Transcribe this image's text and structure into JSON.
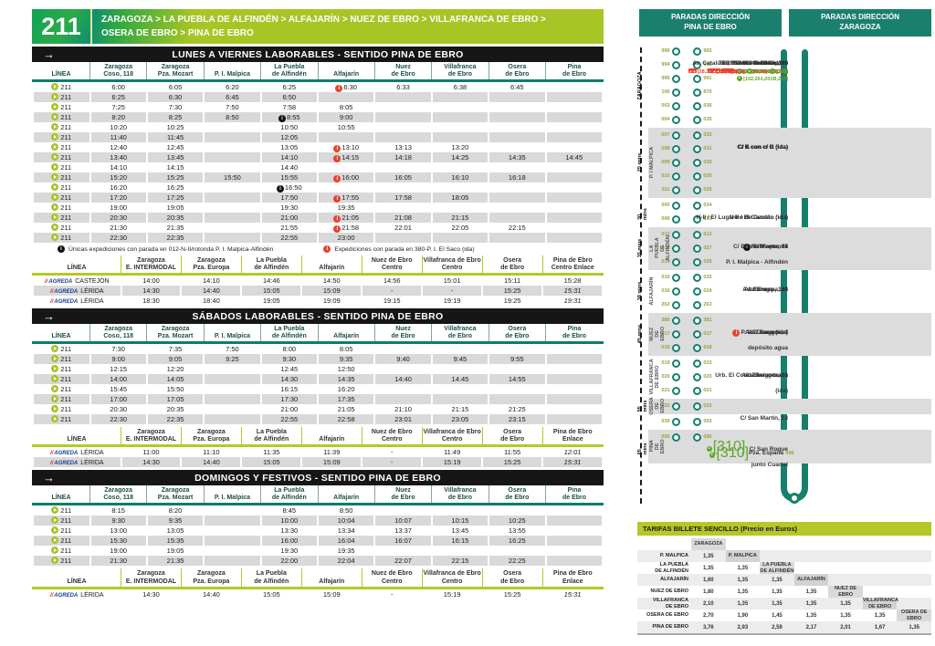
{
  "line": {
    "number": "211",
    "route_line1": "ZARAGOZA > LA PUEBLA DE ALFINDÉN > ALFAJARÍN > NUEZ DE EBRO > VILLAFRANCA DE EBRO >",
    "route_line2": "OSERA DE EBRO > PINA DE EBRO"
  },
  "colors": {
    "accent_green": "#a7c525",
    "teal": "#17806d",
    "black_bar": "#161616",
    "alert_red": "#e8432e",
    "link_green": "#5da728",
    "gray_band": "#d9d9d9",
    "fares_header": "#b5c827"
  },
  "timetables": [
    {
      "title": "LUNES A VIERNES LABORABLES - SENTIDO PINA DE EBRO",
      "headers": [
        "LÍNEA",
        "Zaragoza\nCoso, 118",
        "Zaragoza\nPza. Mozart",
        "P. I. Malpica",
        "La Puebla\nde Alfindén",
        "Alfajarín",
        "Nuez\nde Ebro",
        "Villafranca\nde Ebro",
        "Osera\nde Ebro",
        "Pina\nde Ebro"
      ],
      "rows": [
        [
          "6:00",
          "6:05",
          "6:20",
          "6:25",
          "r|6:30",
          "6:33",
          "6:38",
          "6:45",
          ""
        ],
        [
          "6:25",
          "6:30",
          "6:45",
          "6:50",
          "",
          "",
          "",
          "",
          ""
        ],
        [
          "7:25",
          "7:30",
          "7:50",
          "7:58",
          "8:05",
          "",
          "",
          "",
          ""
        ],
        [
          "8:20",
          "8:25",
          "8:50",
          "b|8:55",
          "9:00",
          "",
          "",
          "",
          ""
        ],
        [
          "10:20",
          "10:25",
          "",
          "10:50",
          "10:55",
          "",
          "",
          "",
          ""
        ],
        [
          "11:40",
          "11:45",
          "",
          "12:05",
          "",
          "",
          "",
          "",
          ""
        ],
        [
          "12:40",
          "12:45",
          "",
          "13:05",
          "r|13:10",
          "13:13",
          "13:20",
          "",
          ""
        ],
        [
          "13:40",
          "13:45",
          "",
          "14:10",
          "r|14:15",
          "14:18",
          "14:25",
          "14:35",
          "14:45"
        ],
        [
          "14:10",
          "14:15",
          "",
          "14:40",
          "",
          "",
          "",
          "",
          ""
        ],
        [
          "15:20",
          "15:25",
          "15:50",
          "15:55",
          "r|16:00",
          "16:05",
          "16:10",
          "16:18",
          ""
        ],
        [
          "16:20",
          "16:25",
          "",
          "b|16:50",
          "",
          "",
          "",
          "",
          ""
        ],
        [
          "17:20",
          "17:25",
          "",
          "17:50",
          "r|17:55",
          "17:58",
          "18:05",
          "",
          ""
        ],
        [
          "19:00",
          "19:05",
          "",
          "19:30",
          "19:35",
          "",
          "",
          "",
          ""
        ],
        [
          "20:30",
          "20:35",
          "",
          "21:00",
          "r|21:05",
          "21:08",
          "21:15",
          "",
          ""
        ],
        [
          "21:30",
          "21:35",
          "",
          "21:55",
          "r|21:58",
          "22:01",
          "22:05",
          "22:15",
          ""
        ],
        [
          "22:30",
          "22:35",
          "",
          "22:55",
          "23:00",
          "",
          "",
          "",
          ""
        ]
      ],
      "footnotes": {
        "black": "Únicas expediciones con parada en 012-N-II/rotonda P. I. Malpica-Alfindén",
        "red": "Expediciones con parada en 380-P. I. El Saco (ida)"
      },
      "sub_headers": [
        "LÍNEA",
        "Zaragoza\nE. INTERMODAL",
        "Zaragoza\nPza. Europa",
        "La Puebla\nde Alfindén",
        "Alfajarín",
        "Nuez de Ebro\nCentro",
        "Villafranca de Ebro\nCentro",
        "Osera\nde Ebro",
        "Pina de Ebro\nCentro  Enlace"
      ],
      "sub_rows": [
        {
          "company": "AGREDA",
          "name": "CASTEJÓN",
          "times": [
            "14:00",
            "14:10",
            "14:46",
            "14:50",
            "14:56",
            "15:01",
            "15:11",
            "15:28"
          ]
        },
        {
          "company": "AGREDA",
          "name": "LÉRIDA",
          "times": [
            "14:30",
            "14:40",
            "15:05",
            "15:09",
            "-",
            "-",
            "15:25",
            "i|15:31"
          ]
        },
        {
          "company": "AGREDA",
          "name": "LÉRIDA",
          "times": [
            "18:30",
            "18:40",
            "19:05",
            "19:09",
            "19:15",
            "19:19",
            "19:25",
            "i|19:31"
          ]
        }
      ]
    },
    {
      "title": "SÁBADOS LABORABLES - SENTIDO PINA DE EBRO",
      "headers": [
        "LÍNEA",
        "Zaragoza\nCoso, 118",
        "Zaragoza\nPza. Mozart",
        "P. I. Malpica",
        "La Puebla\nde Alfindén",
        "Alfajarín",
        "Nuez\nde Ebro",
        "Villafranca\nde Ebro",
        "Osera\nde Ebro",
        "Pina\nde Ebro"
      ],
      "rows": [
        [
          "7:30",
          "7:35",
          "7:50",
          "8:00",
          "8:05",
          "",
          "",
          "",
          ""
        ],
        [
          "9:00",
          "9:05",
          "9:25",
          "9:30",
          "9:35",
          "9:40",
          "9:45",
          "9:55",
          ""
        ],
        [
          "12:15",
          "12:20",
          "",
          "12:45",
          "12:50",
          "",
          "",
          "",
          ""
        ],
        [
          "14:00",
          "14:05",
          "",
          "14:30",
          "14:35",
          "14:40",
          "14:45",
          "14:55",
          ""
        ],
        [
          "15:45",
          "15:50",
          "",
          "16:15",
          "16:20",
          "",
          "",
          "",
          ""
        ],
        [
          "17:00",
          "17:05",
          "",
          "17:30",
          "17:35",
          "",
          "",
          "",
          ""
        ],
        [
          "20:30",
          "20:35",
          "",
          "21:00",
          "21:05",
          "21:10",
          "21:15",
          "21:25",
          ""
        ],
        [
          "22:30",
          "22:35",
          "",
          "22:55",
          "22:58",
          "23:01",
          "23:05",
          "23:15",
          ""
        ]
      ],
      "footnotes": null,
      "sub_headers": [
        "LÍNEA",
        "Zaragoza\nE. INTERMODAL",
        "Zaragoza\nPza. Europa",
        "La Puebla\nde Alfindén",
        "Alfajarín",
        "Nuez de Ebro\nCentro",
        "Villafranca de Ebro\nCentro",
        "Osera\nde Ebro",
        "Pina de Ebro\nEnlace"
      ],
      "sub_rows": [
        {
          "company": "AGREDA",
          "name": "LÉRIDA",
          "times": [
            "11:00",
            "11:10",
            "11:35",
            "11:39",
            "-",
            "11:49",
            "11:55",
            "i|12:01"
          ]
        },
        {
          "company": "AGREDA",
          "name": "LÉRIDA",
          "times": [
            "14:30",
            "14:40",
            "15:05",
            "15:09",
            "-",
            "15:19",
            "15:25",
            "i|15:31"
          ]
        }
      ]
    },
    {
      "title": "DOMINGOS Y FESTIVOS - SENTIDO PINA DE EBRO",
      "headers": [
        "LÍNEA",
        "Zaragoza\nCoso, 118",
        "Zaragoza\nPza. Mozart",
        "P. I. Malpica",
        "La Puebla\nde Alfindén",
        "Alfajarín",
        "Nuez\nde Ebro",
        "Villafranca\nde Ebro",
        "Osera\nde Ebro",
        "Pina\nde Ebro"
      ],
      "rows": [
        [
          "8:15",
          "8:20",
          "",
          "8:45",
          "8:50",
          "",
          "",
          "",
          ""
        ],
        [
          "9:30",
          "9:35",
          "",
          "10:00",
          "10:04",
          "10:07",
          "10:15",
          "10:25",
          ""
        ],
        [
          "13:00",
          "13:05",
          "",
          "13:30",
          "13:34",
          "13:37",
          "13:45",
          "13:55",
          ""
        ],
        [
          "15:30",
          "15:35",
          "",
          "16:00",
          "16:04",
          "16:07",
          "16:15",
          "16:25",
          ""
        ],
        [
          "19:00",
          "19:05",
          "",
          "19:30",
          "19:35",
          "",
          "",
          "",
          ""
        ],
        [
          "21:30",
          "21:35",
          "",
          "22:00",
          "22:04",
          "22:07",
          "22:15",
          "22:25",
          ""
        ]
      ],
      "footnotes": null,
      "sub_headers": [
        "LÍNEA",
        "Zaragoza\nE. INTERMODAL",
        "Zaragoza\nPza. Europa",
        "La Puebla\nde Alfindén",
        "Alfajarín",
        "Nuez de Ebro\nCentro",
        "Villafranca de Ebro\nCentro",
        "Osera\nde Ebro",
        "Pina de Ebro\nEnlace"
      ],
      "sub_rows": [
        {
          "company": "AGREDA",
          "name": "LÉRIDA",
          "times": [
            "14:30",
            "14:40",
            "15:05",
            "15:09",
            "-",
            "15:19",
            "15:25",
            "i|15:31"
          ]
        }
      ]
    }
  ],
  "route_map": {
    "header_left": "PARADAS DIRECCIÓN\nPINA DE EBRO",
    "header_right": "PARADAS DIRECCIÓN\nZARAGOZA",
    "sections": [
      {
        "name": "",
        "mins": "ZARAGOZA",
        "gray": false,
        "rows": [
          {
            "l": "TERMINAL: C/ Coso, 118",
            "lc": "990",
            "lb": "[21,22,28,29,32,35,39]",
            "r": "C/ San Vicente de Paul, 3",
            "rc": "993",
            "rb": "[21,22,32]",
            "rg": "[210]"
          },
          {
            "l": "C/ Coso, 188",
            "lc": "994",
            "lb": "[21,22,28,29,32,35,39]",
            "lg": "[210]",
            "r": "C/ San Vicente de Paul, 47",
            "rc": "992",
            "rb": "[21,22,32]",
            "rg": "[210]"
          },
          {
            "l": "Av. Puente del Pilar, s/n",
            "lc": "995",
            "lb": "[21,28,32,35,39]",
            "lg": "[210]",
            "r": "C/ Muel, 9-11",
            "rc": "991",
            "rb": "[21,32,50]",
            "rg": "[210]"
          },
          {
            "l": "Av. Cataluña, 98",
            "lc": "106",
            "lb": "[21,28,32,39,44,50,60,Ci1,Ci2]",
            "lg": "[102,201,201B,210]",
            "r": "Pza. Mozart",
            "rc": "870",
            "rb": "[21,28,32,39,44,50,60,Ci1,Ci2]",
            "rg": "[102,201,201B,210]"
          },
          {
            "l": "Av. Cataluña, 152 / Grande Covián",
            "lc": "003",
            "lb": "[28,32,44,50,60]",
            "lg": "[102,201,201B,210]",
            "r": "Av. Cataluña, 115",
            "rc": "036",
            "rb": "[28,32,44,50,60]",
            "rg": "[102,201,201B,210]"
          },
          {
            "l": "Av. Sta. Isabel, 20",
            "lc": "004",
            "lb": "[28,32,60]",
            "lg": "[201,201B,210]",
            "r": "Av. Sta. Isabel, 27",
            "rc": "035",
            "rb": "[32,60]",
            "rg": "[210]"
          }
        ]
      },
      {
        "name": "P. I MALPICA",
        "mins": "25 mins",
        "gray": true,
        "rows": [
          {
            "l": "C/ A con c/ C (ida)",
            "lc": "007",
            "r": "C/ A con c/ C (vuelta)",
            "rc": "032"
          },
          {
            "l": "C/ A con c/ E (ida)",
            "lc": "008",
            "r": "C/ A con c/ E (vuelta)",
            "rc": "031"
          },
          {
            "l": "C/ E con c/ G (ida)",
            "lc": "009",
            "r": "C/ E con c/ G (vuelta)",
            "rc": "030"
          },
          {
            "l": "C/ E con c/ B (ida)",
            "lc": "010",
            "r": "C/ E con c/ B (vuelta)",
            "rc": "029"
          },
          {
            "l": "C/ B con c/ D (ida)",
            "lc": "011",
            "r": "C/ B con c/ D (vuelta)",
            "rc": "028"
          }
        ]
      },
      {
        "name": "",
        "mins": "30 mins",
        "gray": false,
        "rows": [
          {
            "l": "N-II / El Cazuelo (ida)",
            "lc": "005",
            "r": "N-II / El Cazuelo (vuelta)",
            "rc": "034"
          },
          {
            "l": "N-II / El Lugarico de Cerdán (ida)",
            "lc": "006",
            "r": "N-II / El Lugarico de Cerdán (vuelta)",
            "rc": "033"
          }
        ]
      },
      {
        "name": "LA PUEBLA\nDE ALFINDÉN",
        "mins": "35 mins",
        "gray": true,
        "rows": [
          {
            "l": "N-II / rotonda\nP. I. Malpica - Alfindén",
            "li": "b",
            "lc": "012",
            "r": "N-II / rotonda\nP. I. Malpica - Alfindén",
            "ri": "b",
            "rc": "012"
          },
          {
            "l": "C/ Barrio Nuevo, 37",
            "lc": "013",
            "r": "C/ Barrio Nuevo, 38",
            "rc": "027"
          },
          {
            "l": "C/ Mayor, 66",
            "lc": "014",
            "r": "C/ Mayor, 69",
            "rc": "026"
          }
        ]
      },
      {
        "name": "ALFAJARÍN",
        "mins": "38 mins",
        "gray": false,
        "rows": [
          {
            "l": "Av. Europa, 68",
            "lc": "015",
            "r": "Av. Europa / centro de salud",
            "rc": "025"
          },
          {
            "l": "Av. Europa, 138",
            "lc": "016",
            "r": "Av. Europa, 127",
            "rc": "024"
          },
          {
            "l": "Av. Europa , 198",
            "lc": "262",
            "r": "Av. Europa, 197",
            "rc": "263"
          }
        ]
      },
      {
        "name": "NUEZ\nDE EBRO",
        "mins": "45 mins",
        "gray": true,
        "rows": [
          {
            "l": "P. I. El Saco (ida)",
            "li": "r",
            "lc": "380",
            "r": "P. I. El Saco (vuelta)",
            "ri": "r",
            "rc": "381"
          },
          {
            "l": "Av. Zaragoza /\ndepósito agua",
            "lc": "017",
            "r": "Av. Zaragoza /\ndepósito agua",
            "rc": "017"
          },
          {
            "l": "Av. Zaragoza, 1",
            "lc": "018",
            "r": "Av. Zaragoza, 1",
            "rc": "018"
          }
        ]
      },
      {
        "name": "VILLAFRANCA\nDE EBRO",
        "mins": "",
        "gray": false,
        "rows": [
          {
            "l": "Urb. El Condado / entrada\n(ida)",
            "lc": "019",
            "r": "Urb. El Condado / entrada\n(vuelta)",
            "rc": "023"
          },
          {
            "l": "Av. Zaragoza, 1",
            "lc": "020",
            "r": "Av. Zaragoza, 1",
            "rc": "020"
          },
          {
            "l": "Av. Zaragoza, 33",
            "lc": "021",
            "r": "Av. Zaragoza, 33",
            "rc": "021"
          }
        ]
      },
      {
        "name": "OSERA\nDE EBRO",
        "mins": "55 mins",
        "gray": true,
        "rows": [
          {
            "l": "C/ San Martín, 13",
            "lc": "022",
            "r": "C/ San Martín, 13",
            "rc": "022"
          }
        ]
      },
      {
        "name": "",
        "mins": "",
        "gray": false,
        "rows": [
          {
            "l": "N-II enlace Aguilar de Ebro\n(ida)",
            "lc": "039",
            "r": "N-II enlace Aguilar de Ebro\n(vuelta)",
            "rc": "093"
          }
        ]
      },
      {
        "name": "PINA\nDE EBRO",
        "mins": "65 mins",
        "gray": true,
        "rows": [
          {
            "l": "C/ San Roque\njunto Cuartel",
            "lc": "095",
            "lgi": "[310]",
            "r": "C/ San Roque\njunto Cuartel",
            "rc": "095",
            "rgi": "[310]"
          },
          {
            "l": "Pza. España",
            "lc": "096",
            "lgi": "[310]",
            "single": true
          }
        ]
      }
    ]
  },
  "fares": {
    "title": "TARIFAS BILLETE SENCILLO (Precio en Euros)",
    "matrix_labels": [
      "ZARAGOZA",
      "P. MALPICA",
      "LA PUEBLA\nDE ALFINDÉN",
      "ALFAJARÍN",
      "NUEZ DE EBRO",
      "VILLAFRANCA\nDE EBRO",
      "OSERA DE EBRO",
      "PINA DE EBRO"
    ],
    "rows": [
      [
        "1,35"
      ],
      [
        "1,35",
        "1,35"
      ],
      [
        "1,60",
        "1,35",
        "1,35"
      ],
      [
        "1,80",
        "1,35",
        "1,35",
        "1,35"
      ],
      [
        "2,10",
        "1,35",
        "1,35",
        "1,35",
        "1,35"
      ],
      [
        "2,70",
        "1,90",
        "1,45",
        "1,35",
        "1,35",
        "1,35"
      ],
      [
        "3,76",
        "2,93",
        "2,59",
        "2,17",
        "2,01",
        "1,67",
        "1,35"
      ]
    ]
  }
}
